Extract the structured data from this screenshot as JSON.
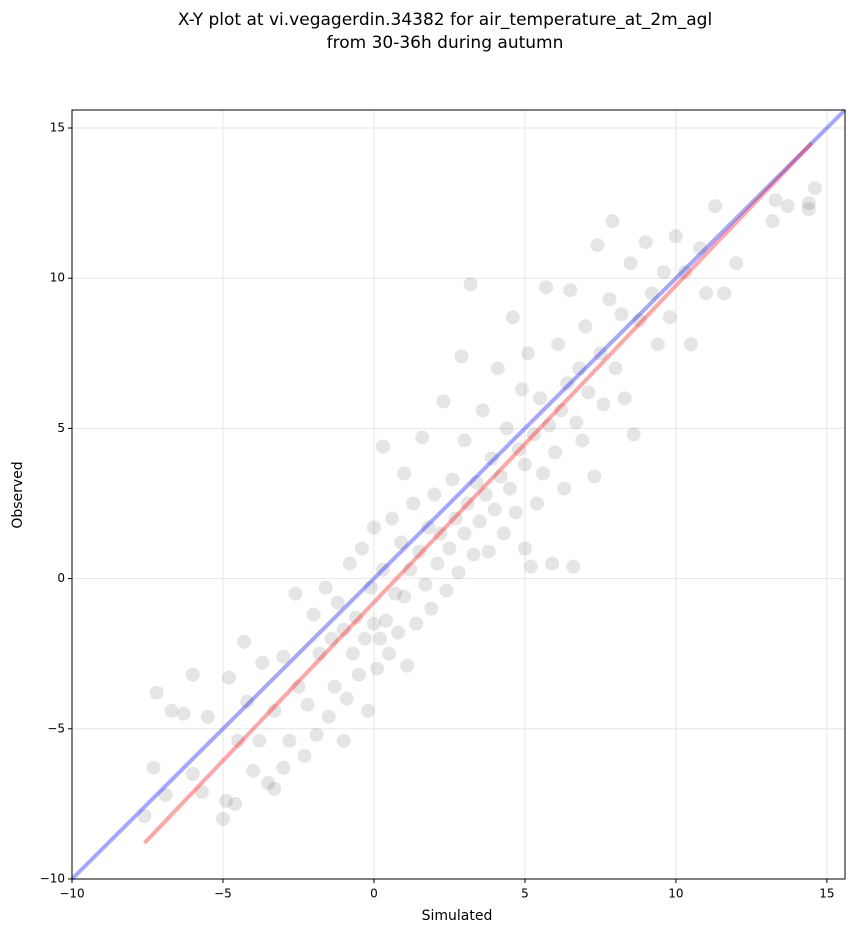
{
  "chart_data": {
    "type": "scatter",
    "title": [
      "X-Y plot at vi.vegagerdin.34382 for air_temperature_at_2m_agl",
      "from 30-36h during autumn"
    ],
    "x_label": "Simulated",
    "y_label": "Observed",
    "xlim": [
      -10,
      15.6
    ],
    "ylim": [
      -10,
      15.6
    ],
    "xticks": [
      {
        "value": -10,
        "label": "−10"
      },
      {
        "value": -5,
        "label": "−5"
      },
      0,
      5,
      10,
      15
    ],
    "yticks": [
      {
        "value": -10,
        "label": "−10"
      },
      {
        "value": -5,
        "label": "−5"
      },
      0,
      5,
      10,
      15
    ],
    "grid": true,
    "color": "#000000",
    "x": [
      -7.6,
      -7.3,
      -7.2,
      -6.9,
      -6.7,
      -6.3,
      -6.0,
      -6.0,
      -5.7,
      -5.5,
      -5.0,
      -4.9,
      -4.8,
      -4.6,
      -4.5,
      -4.3,
      -4.2,
      -4.0,
      -3.8,
      -3.7,
      -3.5,
      -3.3,
      -3.3,
      -3.0,
      -3.0,
      -2.8,
      -2.6,
      -2.5,
      -2.3,
      -2.2,
      -2.0,
      -1.9,
      -1.8,
      -1.6,
      -1.5,
      -1.4,
      -1.3,
      -1.2,
      -1.0,
      -1.0,
      -0.9,
      -0.8,
      -0.7,
      -0.6,
      -0.5,
      -0.4,
      -0.3,
      -0.2,
      -0.1,
      0.0,
      0.0,
      0.1,
      0.2,
      0.3,
      0.3,
      0.4,
      0.5,
      0.6,
      0.7,
      0.8,
      0.9,
      1.0,
      1.0,
      1.1,
      1.2,
      1.3,
      1.4,
      1.5,
      1.6,
      1.7,
      1.8,
      1.9,
      2.0,
      2.1,
      2.2,
      2.3,
      2.4,
      2.5,
      2.6,
      2.7,
      2.8,
      2.9,
      3.0,
      3.0,
      3.1,
      3.2,
      3.3,
      3.4,
      3.5,
      3.6,
      3.7,
      3.8,
      3.9,
      4.0,
      4.1,
      4.2,
      4.3,
      4.4,
      4.5,
      4.6,
      4.7,
      4.8,
      4.9,
      5.0,
      5.0,
      5.1,
      5.2,
      5.3,
      5.4,
      5.5,
      5.6,
      5.7,
      5.8,
      5.9,
      6.0,
      6.1,
      6.2,
      6.3,
      6.4,
      6.5,
      6.6,
      6.7,
      6.8,
      6.9,
      7.0,
      7.1,
      7.3,
      7.4,
      7.5,
      7.6,
      7.8,
      7.9,
      8.0,
      8.2,
      8.3,
      8.5,
      8.6,
      8.8,
      9.0,
      9.2,
      9.4,
      9.6,
      9.8,
      10.0,
      10.3,
      10.5,
      10.8,
      11.0,
      11.3,
      11.6,
      12.0,
      13.2,
      13.3,
      13.7,
      14.4,
      14.4,
      14.6
    ],
    "y": [
      -7.9,
      -6.3,
      -3.8,
      -7.2,
      -4.4,
      -4.5,
      -6.5,
      -3.2,
      -7.1,
      -4.6,
      -8.0,
      -7.4,
      -3.3,
      -7.5,
      -5.4,
      -2.1,
      -4.1,
      -6.4,
      -5.4,
      -2.8,
      -6.8,
      -7.0,
      -4.4,
      -6.3,
      -2.6,
      -5.4,
      -0.5,
      -3.6,
      -5.9,
      -4.2,
      -1.2,
      -5.2,
      -2.5,
      -0.3,
      -4.6,
      -2.0,
      -3.6,
      -0.8,
      -5.4,
      -1.7,
      -4.0,
      0.5,
      -2.5,
      -1.3,
      -3.2,
      1.0,
      -2.0,
      -4.4,
      -0.3,
      -1.5,
      1.7,
      -3.0,
      -2.0,
      0.3,
      4.4,
      -1.4,
      -2.5,
      2.0,
      -0.5,
      -1.8,
      1.2,
      3.5,
      -0.6,
      -2.9,
      0.3,
      2.5,
      -1.5,
      0.9,
      4.7,
      -0.2,
      1.7,
      -1.0,
      2.8,
      0.5,
      1.5,
      5.9,
      -0.4,
      1.0,
      3.3,
      2.0,
      0.2,
      7.4,
      1.5,
      4.6,
      2.5,
      9.8,
      0.8,
      3.2,
      1.9,
      5.6,
      2.8,
      0.9,
      4.0,
      2.3,
      7.0,
      3.4,
      1.5,
      5.0,
      3.0,
      8.7,
      2.2,
      4.3,
      6.3,
      1.0,
      3.8,
      7.5,
      0.4,
      4.8,
      2.5,
      6.0,
      3.5,
      9.7,
      5.1,
      0.5,
      4.2,
      7.8,
      5.6,
      3.0,
      6.5,
      9.6,
      0.4,
      5.2,
      7.0,
      4.6,
      8.4,
      6.2,
      3.4,
      11.1,
      7.5,
      5.8,
      9.3,
      11.9,
      7.0,
      8.8,
      6.0,
      10.5,
      4.8,
      8.6,
      11.2,
      9.5,
      7.8,
      10.2,
      8.7,
      11.4,
      10.2,
      7.8,
      11.0,
      9.5,
      12.4,
      9.5,
      10.5,
      11.9,
      12.6,
      12.4,
      12.5,
      12.3,
      13.0
    ],
    "lines": [
      {
        "color": "#0000ff",
        "x": [
          -10,
          15.6
        ],
        "y": [
          -10,
          15.6
        ]
      },
      {
        "color": "#ff0000",
        "x": [
          -7.6,
          14.5
        ],
        "y": [
          -8.8,
          14.5
        ]
      }
    ]
  }
}
